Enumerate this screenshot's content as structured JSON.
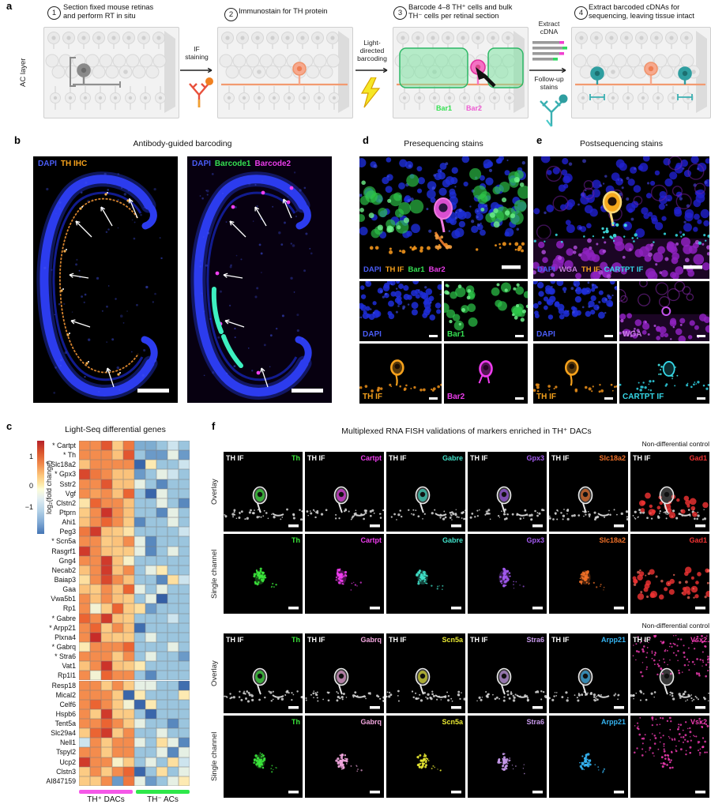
{
  "panels": {
    "a": {
      "label": "a",
      "steps": [
        {
          "num": "1",
          "lines": [
            "Section fixed mouse retinas",
            "and perform RT in situ"
          ]
        },
        {
          "num": "2",
          "lines": [
            "Immunostain for TH protein"
          ]
        },
        {
          "num": "3",
          "lines": [
            "Barcode 4–8 TH⁺ cells and bulk",
            "TH⁻ cells per retinal section"
          ]
        },
        {
          "num": "4",
          "lines": [
            "Extract barcoded cDNAs for",
            "sequencing, leaving tissue intact"
          ]
        }
      ],
      "ac_layer": "AC layer",
      "if_staining": [
        "IF",
        "staining"
      ],
      "light_directed": [
        "Light-",
        "directed",
        "barcoding"
      ],
      "extract_cdna": [
        "Extract",
        "cDNA"
      ],
      "followup_stains": [
        "Follow-up",
        "stains"
      ],
      "bar1": "Bar1",
      "bar2": "Bar2",
      "bar1_color": "#35e052",
      "bar2_color": "#ee5ad2"
    },
    "b": {
      "label": "b",
      "title": "Antibody-guided barcoding",
      "image1_channels": [
        {
          "label": "DAPI",
          "color": "#4a5cf5"
        },
        {
          "label": "TH IHC",
          "color": "#f5a11c"
        }
      ],
      "image2_channels": [
        {
          "label": "DAPI",
          "color": "#4a5cf5"
        },
        {
          "label": "Barcode1",
          "color": "#35e052"
        },
        {
          "label": "Barcode2",
          "color": "#ea3cea"
        }
      ]
    },
    "c": {
      "label": "c",
      "title": "Light-Seq differential genes"
    },
    "d": {
      "label": "d",
      "title": "Presequencing stains",
      "main_channels": [
        {
          "label": "DAPI",
          "color": "#4a5cf5"
        },
        {
          "label": "TH IF",
          "color": "#f5a11c"
        },
        {
          "label": "Bar1",
          "color": "#35e052"
        },
        {
          "label": "Bar2",
          "color": "#ea3cea"
        }
      ],
      "tiles": [
        {
          "label": "DAPI",
          "color": "#4a5cf5",
          "art": "dapi"
        },
        {
          "label": "Bar1",
          "color": "#35e052",
          "art": "bar1"
        },
        {
          "label": "TH IF",
          "color": "#f5a11c",
          "art": "thif"
        },
        {
          "label": "Bar2",
          "color": "#ea3cea",
          "art": "bar2"
        }
      ]
    },
    "e": {
      "label": "e",
      "title": "Postsequencing stains",
      "main_channels": [
        {
          "label": "DAPI",
          "color": "#4a5cf5"
        },
        {
          "label": "WGA",
          "color": "#c77de0"
        },
        {
          "label": "TH IF",
          "color": "#f5a11c"
        },
        {
          "label": "CARTPT IF",
          "color": "#35d8e8"
        }
      ],
      "tiles": [
        {
          "label": "DAPI",
          "color": "#4a5cf5",
          "art": "dapi"
        },
        {
          "label": "WGA",
          "color": "#c77de0",
          "art": "wga"
        },
        {
          "label": "TH IF",
          "color": "#f5a11c",
          "art": "thif"
        },
        {
          "label": "CARTPT IF",
          "color": "#35d8e8",
          "art": "cartpt"
        }
      ]
    },
    "f": {
      "label": "f",
      "title": "Multiplexed RNA FISH validations of markers enriched in TH⁺ DACs",
      "control_label": "Non-differential control",
      "th_if_label": "TH IF",
      "row_labels": [
        "Overlay",
        "Single channel"
      ],
      "blocks": [
        {
          "genes": [
            {
              "name": "Th",
              "color": "#3ce83c"
            },
            {
              "name": "Cartpt",
              "color": "#ee3cee"
            },
            {
              "name": "Gabre",
              "color": "#40e0c8"
            },
            {
              "name": "Gpx3",
              "color": "#a35af0"
            },
            {
              "name": "Slc18a2",
              "color": "#f07028"
            },
            {
              "name": "Gad1",
              "color": "#f23333",
              "control": true
            }
          ]
        },
        {
          "genes": [
            {
              "name": "Th",
              "color": "#3ce83c"
            },
            {
              "name": "Gabrq",
              "color": "#f2a6de"
            },
            {
              "name": "Scn5a",
              "color": "#e8e832"
            },
            {
              "name": "Stra6",
              "color": "#c89aec"
            },
            {
              "name": "Arpp21",
              "color": "#35b4f2"
            },
            {
              "name": "Vsx2",
              "color": "#f23cb4",
              "control": true
            }
          ]
        }
      ]
    }
  },
  "chart_data": {
    "type": "heatmap",
    "title": "Light-Seq differential genes",
    "colorbar": {
      "label": "log₂(fold change)",
      "ticks": [
        "1",
        "0",
        "−1"
      ],
      "range": [
        -1.5,
        1.5
      ]
    },
    "column_groups": [
      {
        "label": "TH⁺ DACs",
        "n": 5,
        "color": "#f558e8"
      },
      {
        "label": "TH⁻ ACs",
        "n": 5,
        "color": "#2ee84a"
      }
    ],
    "rows": [
      {
        "gene": "Cartpt",
        "starred": true,
        "values": [
          0.8,
          0.8,
          1.1,
          0.45,
          0.9,
          -0.6,
          -0.6,
          -0.45,
          -0.2,
          -0.45
        ]
      },
      {
        "gene": "Th",
        "starred": true,
        "values": [
          0.8,
          0.8,
          0.8,
          0.5,
          1.1,
          -0.45,
          -0.7,
          -0.7,
          -0.05,
          -0.7
        ]
      },
      {
        "gene": "Slc18a2",
        "starred": true,
        "values": [
          0.5,
          0.8,
          0.8,
          0.8,
          0.8,
          -1.1,
          0.2,
          -0.45,
          -0.45,
          -0.2
        ]
      },
      {
        "gene": "Gpx3",
        "starred": true,
        "values": [
          1.2,
          0.9,
          0.8,
          0.5,
          0.5,
          -0.7,
          -0.45,
          -0.05,
          -0.2,
          -0.45
        ]
      },
      {
        "gene": "Sstr2",
        "starred": false,
        "values": [
          0.8,
          0.8,
          1.1,
          0.5,
          0.5,
          -0.05,
          -0.45,
          -0.8,
          -0.45,
          -0.45
        ]
      },
      {
        "gene": "Vgf",
        "starred": false,
        "values": [
          0.8,
          0.7,
          0.8,
          0.5,
          1.0,
          -0.45,
          -1.1,
          -0.05,
          -0.45,
          -0.45
        ]
      },
      {
        "gene": "Clstn2",
        "starred": false,
        "values": [
          0.25,
          1.0,
          0.8,
          0.8,
          0.5,
          -0.45,
          -0.45,
          -0.05,
          -0.45,
          -0.8
        ]
      },
      {
        "gene": "Ptprn",
        "starred": false,
        "values": [
          0.45,
          0.8,
          1.35,
          0.8,
          0.5,
          -0.45,
          -0.45,
          -0.8,
          -0.05,
          -0.45
        ]
      },
      {
        "gene": "Ahi1",
        "starred": false,
        "values": [
          0.5,
          0.8,
          1.0,
          0.8,
          0.45,
          -0.8,
          -0.45,
          -0.45,
          -0.05,
          -0.45
        ]
      },
      {
        "gene": "Peg3",
        "starred": false,
        "values": [
          0.9,
          1.3,
          0.5,
          0.45,
          0.25,
          -0.45,
          -0.45,
          -0.45,
          -0.45,
          -0.2
        ]
      },
      {
        "gene": "Scn5a",
        "starred": true,
        "values": [
          0.8,
          0.8,
          0.45,
          0.5,
          0.8,
          -0.05,
          -0.8,
          -0.45,
          -0.45,
          -0.45
        ]
      },
      {
        "gene": "Rasgrf1",
        "starred": false,
        "values": [
          1.3,
          0.8,
          0.5,
          0.45,
          0.45,
          -0.05,
          -0.8,
          -0.45,
          -0.05,
          -0.45
        ]
      },
      {
        "gene": "Gng4",
        "starred": false,
        "values": [
          0.8,
          0.8,
          1.3,
          0.5,
          0.1,
          -0.45,
          -0.45,
          -0.45,
          -0.45,
          -0.45
        ]
      },
      {
        "gene": "Necab2",
        "starred": false,
        "values": [
          0.5,
          0.8,
          1.3,
          0.5,
          0.8,
          -0.45,
          -0.05,
          0.2,
          -0.45,
          -0.45
        ]
      },
      {
        "gene": "Baiap3",
        "starred": false,
        "values": [
          0.3,
          0.8,
          1.2,
          0.8,
          0.5,
          -0.45,
          -0.45,
          -0.8,
          0.3,
          -0.2
        ]
      },
      {
        "gene": "Gaa",
        "starred": false,
        "values": [
          0.5,
          0.45,
          0.8,
          0.5,
          1.0,
          -0.05,
          -0.45,
          -0.05,
          -0.45,
          -0.45
        ]
      },
      {
        "gene": "Vwa5b1",
        "starred": false,
        "values": [
          0.8,
          0.5,
          0.8,
          0.5,
          0.45,
          -0.45,
          -0.05,
          -1.2,
          -0.45,
          -0.45
        ]
      },
      {
        "gene": "Rp1",
        "starred": false,
        "values": [
          0.8,
          0.05,
          0.45,
          1.0,
          0.45,
          0.3,
          -0.7,
          -0.45,
          -0.45,
          -0.45
        ]
      },
      {
        "gene": "Gabre",
        "starred": true,
        "values": [
          1.0,
          0.8,
          1.3,
          0.5,
          0.45,
          -0.45,
          -0.45,
          -0.45,
          -0.2,
          -0.45
        ]
      },
      {
        "gene": "Arpp21",
        "starred": true,
        "values": [
          0.8,
          1.0,
          0.45,
          0.8,
          0.5,
          -1.0,
          -0.45,
          -0.45,
          -0.45,
          -0.45
        ]
      },
      {
        "gene": "Plxna4",
        "starred": false,
        "values": [
          0.8,
          1.4,
          0.5,
          0.45,
          0.45,
          -0.45,
          -0.05,
          -0.45,
          -0.45,
          -0.45
        ]
      },
      {
        "gene": "Gabrq",
        "starred": true,
        "values": [
          0.2,
          0.8,
          0.8,
          0.8,
          1.0,
          -0.45,
          -0.45,
          -0.45,
          -0.05,
          -0.45
        ]
      },
      {
        "gene": "Stra6",
        "starred": true,
        "values": [
          0.8,
          0.8,
          0.8,
          0.45,
          0.8,
          -0.45,
          -0.05,
          -0.45,
          -0.45,
          -0.7
        ]
      },
      {
        "gene": "Vat1",
        "starred": false,
        "values": [
          0.5,
          0.8,
          1.35,
          0.5,
          0.45,
          0.2,
          -0.45,
          -0.45,
          -0.45,
          -0.45
        ]
      },
      {
        "gene": "Rp1l1",
        "starred": false,
        "values": [
          0.8,
          0.05,
          1.0,
          0.8,
          0.8,
          -0.45,
          -0.8,
          -0.45,
          -0.45,
          -0.45
        ]
      },
      {
        "gene": "Resp18",
        "starred": false,
        "values": [
          0.8,
          0.8,
          0.45,
          0.8,
          0.45,
          -0.05,
          -0.05,
          -0.45,
          -0.45,
          -1.0
        ]
      },
      {
        "gene": "Mical2",
        "starred": false,
        "values": [
          0.8,
          0.8,
          0.8,
          0.45,
          -1.1,
          0.2,
          -0.45,
          -0.45,
          -0.45,
          0.2
        ]
      },
      {
        "gene": "Celf6",
        "starred": false,
        "values": [
          0.8,
          1.0,
          0.8,
          0.45,
          0.05,
          -1.1,
          0.2,
          -0.45,
          -0.45,
          -0.45
        ]
      },
      {
        "gene": "Hspb6",
        "starred": false,
        "values": [
          0.8,
          0.45,
          1.3,
          0.45,
          0.45,
          -0.45,
          -1.1,
          -0.45,
          -0.45,
          -0.45
        ]
      },
      {
        "gene": "Tent5a",
        "starred": false,
        "values": [
          0.8,
          0.8,
          1.0,
          0.8,
          0.45,
          -0.05,
          -0.45,
          -0.45,
          -0.8,
          -0.45
        ]
      },
      {
        "gene": "Slc29a4",
        "starred": false,
        "values": [
          0.45,
          1.0,
          1.3,
          0.45,
          0.8,
          -0.45,
          -0.45,
          -0.05,
          -0.45,
          -0.45
        ]
      },
      {
        "gene": "Nell1",
        "starred": false,
        "values": [
          -0.2,
          0.8,
          0.45,
          0.8,
          0.8,
          -0.05,
          -0.45,
          0.3,
          -0.05,
          -0.8
        ]
      },
      {
        "gene": "Tspyl2",
        "starred": false,
        "values": [
          0.8,
          0.8,
          0.45,
          0.8,
          0.8,
          -0.45,
          -0.45,
          -0.05,
          -0.8,
          -0.05
        ]
      },
      {
        "gene": "Ucp2",
        "starred": false,
        "values": [
          1.3,
          0.8,
          0.8,
          0.1,
          0.45,
          -0.45,
          -0.05,
          -0.45,
          0.3,
          -0.2
        ]
      },
      {
        "gene": "Clstn3",
        "starred": false,
        "values": [
          0.45,
          0.8,
          0.45,
          0.8,
          1.0,
          -1.1,
          -0.45,
          0.3,
          -0.45,
          -0.05
        ]
      },
      {
        "gene": "AI847159",
        "starred": false,
        "values": [
          0.45,
          0.45,
          0.8,
          -0.7,
          0.9,
          -0.05,
          -0.7,
          -0.45,
          -0.05,
          0.2
        ]
      }
    ]
  }
}
